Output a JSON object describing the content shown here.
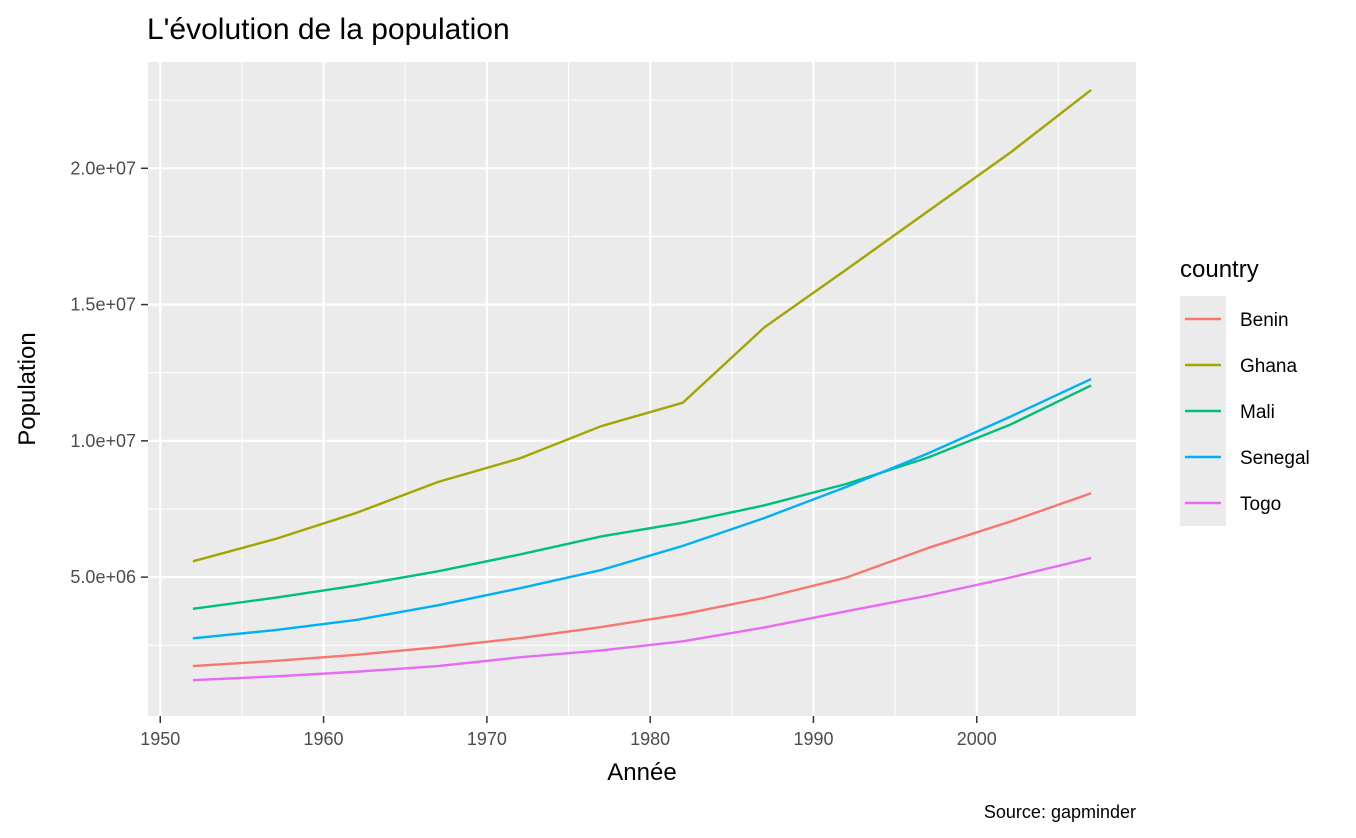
{
  "chart_data": {
    "type": "line",
    "title": "L'évolution de la population",
    "xlabel": "Année",
    "ylabel": "Population",
    "caption": "Source: gapminder",
    "legend_title": "country",
    "legend_position": "right",
    "grid": true,
    "xlim": [
      1949.25,
      2009.75
    ],
    "ylim": [
      -95000,
      23900000
    ],
    "x_ticks": [
      1950,
      1960,
      1970,
      1980,
      1990,
      2000
    ],
    "x_tick_labels": [
      "1950",
      "1960",
      "1970",
      "1980",
      "1990",
      "2000"
    ],
    "y_ticks": [
      5000000,
      10000000,
      15000000,
      20000000
    ],
    "y_tick_labels": [
      "5.0e+06",
      "1.0e+07",
      "1.5e+07",
      "2.0e+07"
    ],
    "x": [
      1952,
      1957,
      1962,
      1967,
      1972,
      1977,
      1982,
      1987,
      1992,
      1997,
      2002,
      2007
    ],
    "series": [
      {
        "name": "Benin",
        "color": "#F8766D",
        "values": [
          1738315,
          1925173,
          2151895,
          2427334,
          2761407,
          3168267,
          3641603,
          4243788,
          4981671,
          6066080,
          7026113,
          8078314
        ]
      },
      {
        "name": "Ghana",
        "color": "#A3A500",
        "values": [
          5581001,
          6391288,
          7355248,
          8490213,
          9354120,
          10538093,
          11400338,
          14168101,
          16278738,
          18418288,
          20550751,
          22873338
        ]
      },
      {
        "name": "Mali",
        "color": "#00BF7D",
        "values": [
          3838168,
          4241884,
          4690372,
          5212416,
          5828158,
          6491649,
          6998256,
          7634008,
          8416215,
          9384984,
          10580176,
          12031795
        ]
      },
      {
        "name": "Senegal",
        "color": "#00B0F6",
        "values": [
          2755589,
          3054547,
          3430243,
          3965841,
          4588696,
          5260855,
          6147783,
          7171347,
          8307920,
          9535314,
          10870037,
          12267493
        ]
      },
      {
        "name": "Togo",
        "color": "#E76BF3",
        "values": [
          1219113,
          1357445,
          1528098,
          1735550,
          2056351,
          2308582,
          2644765,
          3154264,
          3747553,
          4320890,
          4977378,
          5701579
        ]
      }
    ]
  }
}
